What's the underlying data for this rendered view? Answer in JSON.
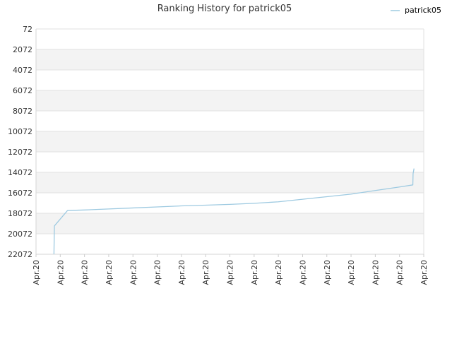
{
  "chart_data": {
    "type": "line",
    "title": "Ranking History for patrick05",
    "legend_position": "top-right",
    "y_reversed": true,
    "grid": true,
    "ylim": [
      72,
      22072
    ],
    "y_ticks": [
      "72",
      "2072",
      "4072",
      "6072",
      "8072",
      "10072",
      "12072",
      "14072",
      "16072",
      "18072",
      "20072",
      "22072"
    ],
    "x_ticks": [
      "Apr.20",
      "Apr.20",
      "Apr.20",
      "Apr.20",
      "Apr.20",
      "Apr.20",
      "Apr.20",
      "Apr.20",
      "Apr.20",
      "Apr.20",
      "Apr.20",
      "Apr.20",
      "Apr.20",
      "Apr.20",
      "Apr.20",
      "Apr.20",
      "Apr.20"
    ],
    "x_domain": [
      0,
      16
    ],
    "series": [
      {
        "name": "patrick05",
        "color": "#9ecae1",
        "x": [
          0.74,
          0.75,
          0.76,
          1.3,
          2.0,
          3.0,
          4.0,
          5.0,
          6.0,
          7.0,
          8.0,
          9.0,
          10.0,
          11.0,
          12.0,
          13.0,
          14.0,
          15.0,
          15.55,
          15.56,
          15.6
        ],
        "y": [
          22072,
          20500,
          19300,
          17800,
          17750,
          17650,
          17550,
          17450,
          17350,
          17280,
          17200,
          17100,
          16950,
          16700,
          16450,
          16200,
          15850,
          15500,
          15300,
          14200,
          13700
        ]
      }
    ]
  }
}
